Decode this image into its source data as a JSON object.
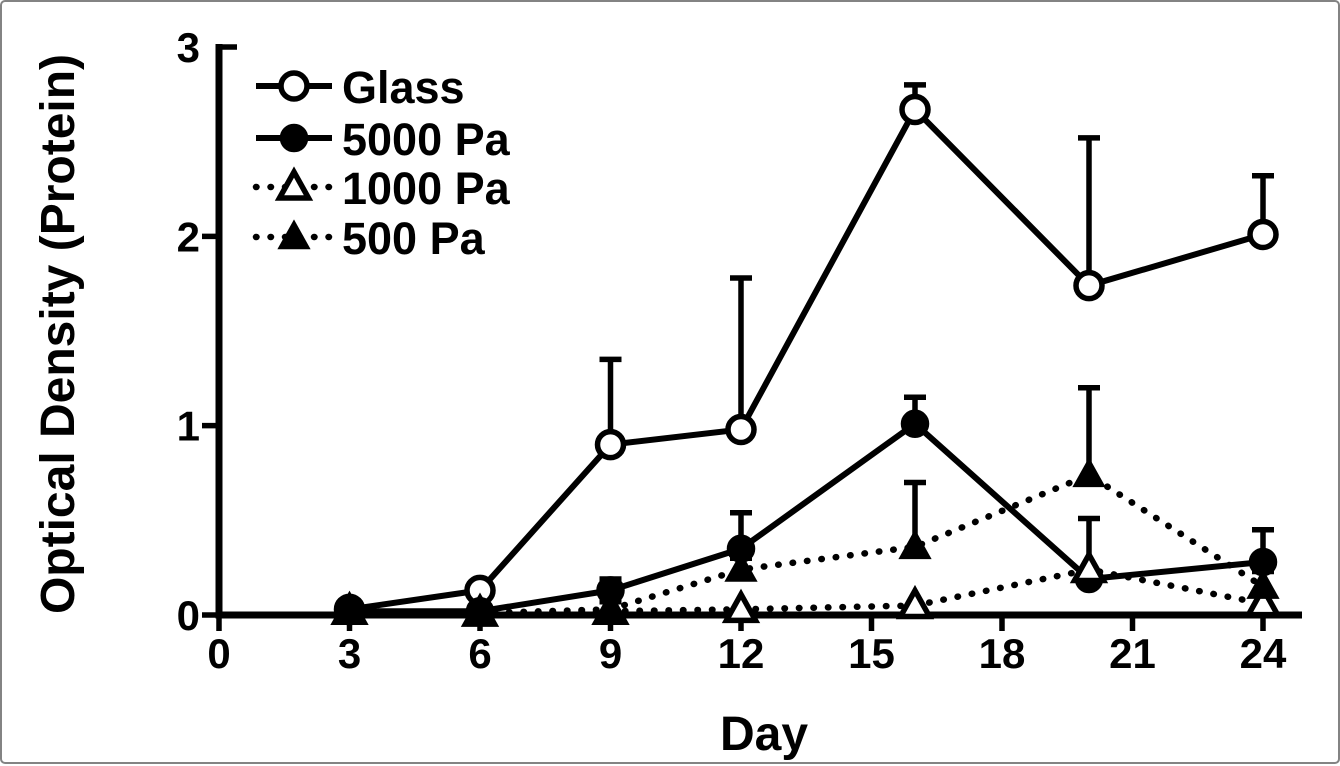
{
  "frame": {
    "background": "#ffffff",
    "border_color": "#838383"
  },
  "chart_data": {
    "type": "line",
    "title": "",
    "xlabel": "Day",
    "ylabel": "Optical Density (Protein)",
    "xlim": [
      0,
      25
    ],
    "ylim": [
      0,
      3
    ],
    "x_ticks": [
      0,
      3,
      6,
      9,
      12,
      15,
      18,
      21,
      24
    ],
    "y_ticks": [
      0,
      1,
      2,
      3
    ],
    "grid": false,
    "legend_position": "top-left-inside",
    "color": "#000000",
    "x": [
      3,
      6,
      9,
      12,
      16,
      20,
      24
    ],
    "series": [
      {
        "name": "Glass",
        "marker": "circle-open",
        "line_style": "solid",
        "values": [
          0.03,
          0.13,
          0.9,
          0.98,
          2.67,
          1.74,
          2.01
        ],
        "error_up": [
          0,
          0,
          0.45,
          0.8,
          0.13,
          0.78,
          0.31
        ]
      },
      {
        "name": "5000 Pa",
        "marker": "circle-filled",
        "line_style": "solid",
        "values": [
          0.02,
          0.02,
          0.13,
          0.35,
          1.01,
          0.19,
          0.28
        ],
        "error_up": [
          0,
          0,
          0.06,
          0.19,
          0.14,
          0,
          0.17
        ]
      },
      {
        "name": "1000 Pa",
        "marker": "triangle-open",
        "line_style": "dotted",
        "values": [
          0.02,
          0.01,
          0.02,
          0.03,
          0.05,
          0.24,
          0.06
        ],
        "error_up": [
          0,
          0,
          0,
          0,
          0,
          0.27,
          0
        ]
      },
      {
        "name": "500 Pa",
        "marker": "triangle-filled",
        "line_style": "dotted",
        "values": [
          0.02,
          0.01,
          0.03,
          0.24,
          0.36,
          0.74,
          0.15
        ],
        "error_up": [
          0,
          0,
          0.04,
          0.06,
          0.34,
          0.46,
          0.08
        ]
      }
    ]
  }
}
